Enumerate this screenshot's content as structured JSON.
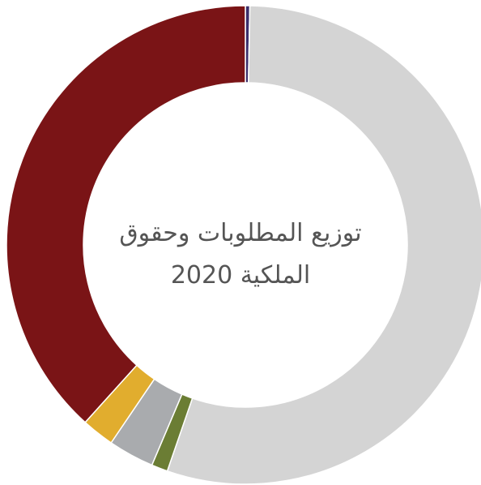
{
  "chart_data": {
    "type": "pie",
    "style": "donut",
    "title": "توزيع المطلوبات وحقوق الملكية 2020",
    "title_lines": [
      "توزيع المطلوبات وحقوق",
      "الملكية 2020"
    ],
    "slices": [
      {
        "value": 0.3,
        "color": "#3b2e6b"
      },
      {
        "value": 55.0,
        "color": "#d4d4d4"
      },
      {
        "value": 1.1,
        "color": "#6b7d34"
      },
      {
        "value": 3.1,
        "color": "#a9abae"
      },
      {
        "value": 2.2,
        "color": "#e1ad2e"
      },
      {
        "value": 38.3,
        "color": "#7a1416"
      }
    ],
    "start_angle_deg": 0,
    "direction": "clockwise",
    "legend": "none"
  }
}
